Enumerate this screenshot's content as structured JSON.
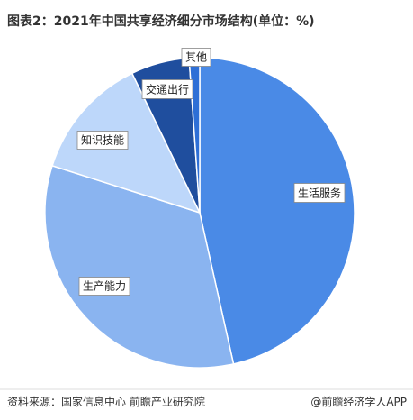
{
  "chart_data": {
    "type": "pie",
    "title": "图表2：2021年中国共享经济细分市场结构(单位：%)",
    "categories": [
      "生活服务",
      "生产能力",
      "知识技能",
      "交通出行",
      "其他"
    ],
    "values": [
      46.5,
      33.4,
      12.9,
      6.1,
      1.1
    ],
    "colors": [
      "#4a8ae6",
      "#8ab4f0",
      "#bdd7fa",
      "#1f4e9e",
      "#2e6fd6"
    ],
    "source": "资料来源：国家信息中心 前瞻产业研究院",
    "credit": "@前瞻经济学人APP"
  }
}
